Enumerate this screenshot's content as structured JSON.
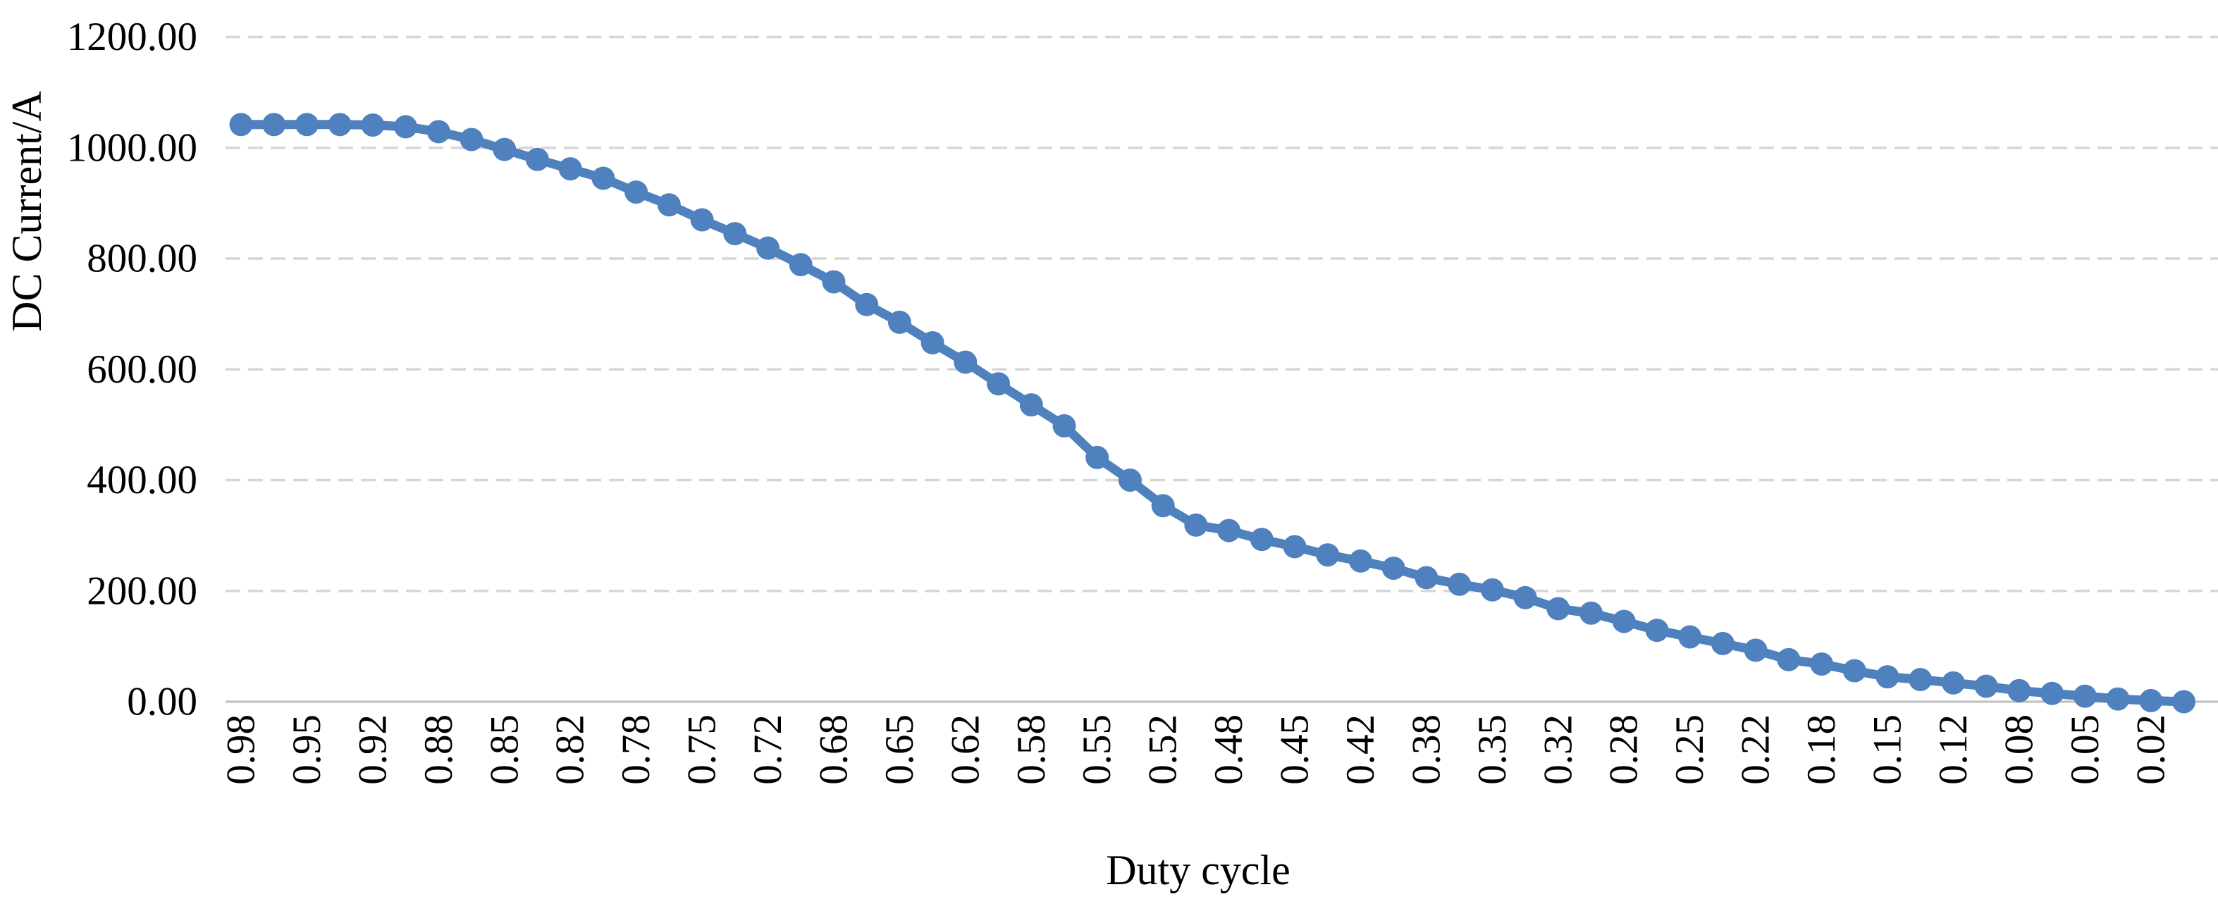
{
  "chart_data": {
    "type": "line",
    "title": "",
    "xlabel": "Duty cycle",
    "ylabel": "DC Current/A",
    "x": [
      0.98,
      0.97,
      0.95,
      0.93,
      0.92,
      0.9,
      0.88,
      0.87,
      0.85,
      0.83,
      0.82,
      0.8,
      0.78,
      0.77,
      0.75,
      0.73,
      0.72,
      0.7,
      0.68,
      0.67,
      0.65,
      0.63,
      0.62,
      0.6,
      0.58,
      0.57,
      0.55,
      0.53,
      0.52,
      0.5,
      0.48,
      0.47,
      0.45,
      0.43,
      0.42,
      0.4,
      0.38,
      0.37,
      0.35,
      0.33,
      0.32,
      0.3,
      0.28,
      0.27,
      0.25,
      0.23,
      0.22,
      0.2,
      0.18,
      0.17,
      0.15,
      0.13,
      0.12,
      0.1,
      0.08,
      0.07,
      0.05,
      0.03,
      0.02,
      0.0
    ],
    "values": [
      1042,
      1042,
      1042,
      1042,
      1041,
      1038,
      1029,
      1015,
      997,
      979,
      962,
      945,
      920,
      897,
      870,
      845,
      819,
      789,
      758,
      717,
      685,
      648,
      613,
      574,
      536,
      498,
      441,
      400,
      354,
      319,
      309,
      293,
      280,
      265,
      254,
      241,
      224,
      212,
      202,
      188,
      168,
      160,
      145,
      129,
      117,
      105,
      93,
      76,
      68,
      56,
      45,
      40,
      34,
      28,
      20,
      15,
      10,
      5,
      2,
      0
    ],
    "x_tick_labels": [
      "0.98",
      "0.95",
      "0.92",
      "0.88",
      "0.85",
      "0.82",
      "0.78",
      "0.75",
      "0.72",
      "0.68",
      "0.65",
      "0.62",
      "0.58",
      "0.55",
      "0.52",
      "0.48",
      "0.45",
      "0.42",
      "0.38",
      "0.35",
      "0.32",
      "0.28",
      "0.25",
      "0.22",
      "0.18",
      "0.15",
      "0.12",
      "0.08",
      "0.05",
      "0.02"
    ],
    "x_tick_every_nth_point": 2,
    "y_ticks": [
      "0.00",
      "200.00",
      "400.00",
      "600.00",
      "800.00",
      "1000.00",
      "1200.00"
    ],
    "ylim": [
      0,
      1200
    ],
    "grid": "horizontal-dashed",
    "legend": "none",
    "series_color": "#4E81BD",
    "gridline_color": "#D6D6D6",
    "axis_line_color": "#C6C6C6",
    "marker": "circle"
  }
}
